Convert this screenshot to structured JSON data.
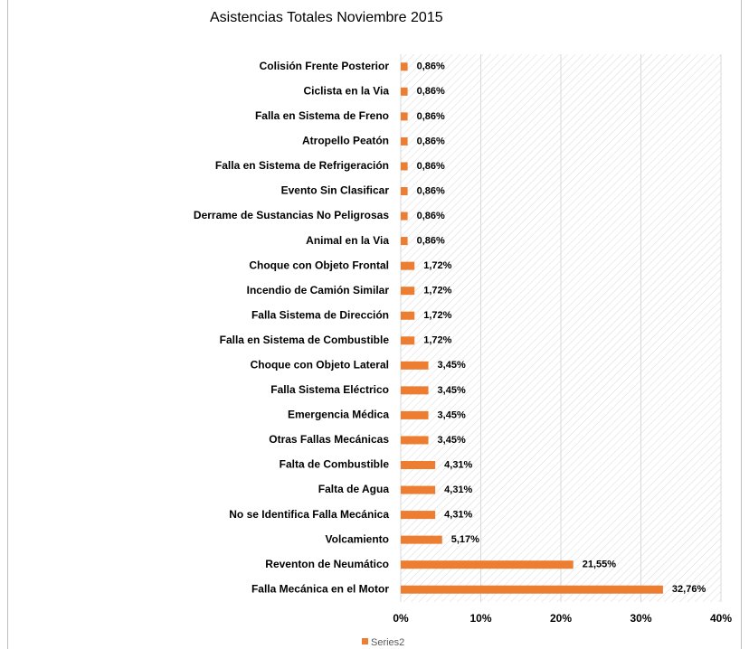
{
  "chart_data": {
    "type": "barh",
    "title": "Asistencias Totales Noviembre 2015",
    "categories": [
      "Colisión Frente Posterior",
      "Ciclista en la Via",
      "Falla en Sistema de Freno",
      "Atropello Peatón",
      "Falla en Sistema de Refrigeración",
      "Evento Sin Clasificar",
      "Derrame de Sustancias No Peligrosas",
      "Animal en la Via",
      "Choque con Objeto Frontal",
      "Incendio de Camión Similar",
      "Falla Sistema de Dirección",
      "Falla en Sistema de Combustible",
      "Choque con Objeto Lateral",
      "Falla Sistema Eléctrico",
      "Emergencia Médica",
      "Otras Fallas Mecánicas",
      "Falta de Combustible",
      "Falta de Agua",
      "No se Identifica Falla Mecánica",
      "Volcamiento",
      "Reventon de Neumático",
      "Falla Mecánica en el Motor"
    ],
    "series": [
      {
        "name": "Series2",
        "color": "#ed7d31",
        "values": [
          0.86,
          0.86,
          0.86,
          0.86,
          0.86,
          0.86,
          0.86,
          0.86,
          1.72,
          1.72,
          1.72,
          1.72,
          3.45,
          3.45,
          3.45,
          3.45,
          4.31,
          4.31,
          4.31,
          5.17,
          21.55,
          32.76
        ],
        "value_labels": [
          "0,86%",
          "0,86%",
          "0,86%",
          "0,86%",
          "0,86%",
          "0,86%",
          "0,86%",
          "0,86%",
          "1,72%",
          "1,72%",
          "1,72%",
          "1,72%",
          "3,45%",
          "3,45%",
          "3,45%",
          "3,45%",
          "4,31%",
          "4,31%",
          "4,31%",
          "5,17%",
          "21,55%",
          "32,76%"
        ]
      }
    ],
    "xlim": [
      0,
      40
    ],
    "xticks": [
      {
        "value": 0,
        "label": "0%"
      },
      {
        "value": 10,
        "label": "10%"
      },
      {
        "value": 20,
        "label": "20%"
      },
      {
        "value": 30,
        "label": "30%"
      },
      {
        "value": 40,
        "label": "40%"
      }
    ],
    "grid": true,
    "legend": "bottom"
  }
}
